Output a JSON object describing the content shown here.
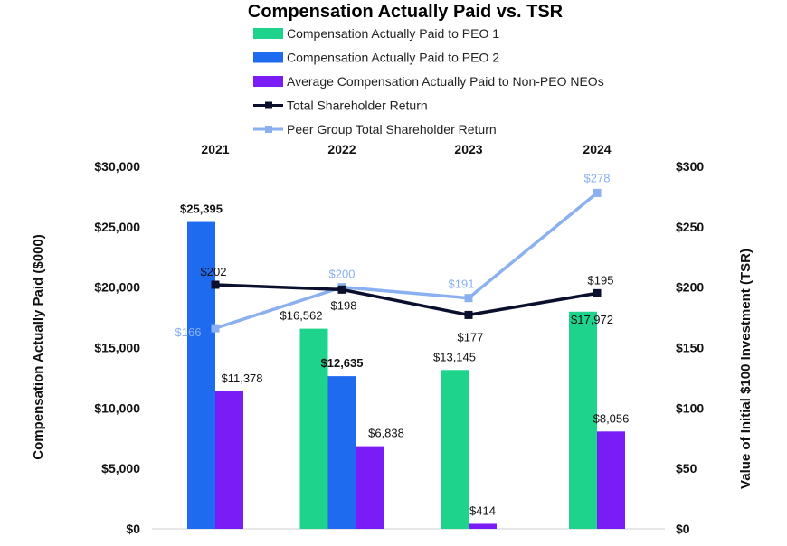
{
  "chart_data": {
    "type": "bar",
    "title": "Compensation Actually Paid vs. TSR",
    "categories": [
      "2021",
      "2022",
      "2023",
      "2024"
    ],
    "ylabel": "Compensation Actually Paid ($000)",
    "y2label": "Value of Initial $100 Investment (TSR)",
    "ylim": [
      0,
      30000
    ],
    "y2lim": [
      0,
      300
    ],
    "yticks": [
      "$0",
      "$5,000",
      "$10,000",
      "$15,000",
      "$20,000",
      "$25,000",
      "$30,000"
    ],
    "y2ticks": [
      "$0",
      "$50",
      "$100",
      "$150",
      "$200",
      "$250",
      "$300"
    ],
    "grid": false,
    "legend_position": "top",
    "series": [
      {
        "name": "Compensation Actually Paid to PEO 1",
        "kind": "bar",
        "axis": "left",
        "color": "#1ED38C",
        "values": [
          null,
          16562,
          13145,
          17972
        ],
        "labels": [
          "",
          "$16,562",
          "$13,145",
          "$17,972"
        ]
      },
      {
        "name": "Compensation Actually Paid to PEO 2",
        "kind": "bar",
        "axis": "left",
        "color": "#1F6BF0",
        "values": [
          25395,
          12635,
          null,
          null
        ],
        "labels": [
          "$25,395",
          "$12,635",
          "",
          ""
        ]
      },
      {
        "name": "Average Compensation Actually Paid to Non-PEO NEOs",
        "kind": "bar",
        "axis": "left",
        "color": "#7A1CF5",
        "values": [
          11378,
          6838,
          414,
          8056
        ],
        "labels": [
          "$11,378",
          "$6,838",
          "$414",
          "$8,056"
        ]
      },
      {
        "name": "Total Shareholder Return",
        "kind": "line",
        "axis": "right",
        "color": "#0A0F2E",
        "values": [
          202,
          198,
          177,
          195
        ],
        "labels": [
          "$202",
          "$198",
          "$177",
          "$195"
        ]
      },
      {
        "name": "Peer Group Total Shareholder Return",
        "kind": "line",
        "axis": "right",
        "color": "#8AB0F0",
        "values": [
          166,
          200,
          191,
          278
        ],
        "labels": [
          "$166",
          "$200",
          "$191",
          "$278"
        ]
      }
    ]
  }
}
